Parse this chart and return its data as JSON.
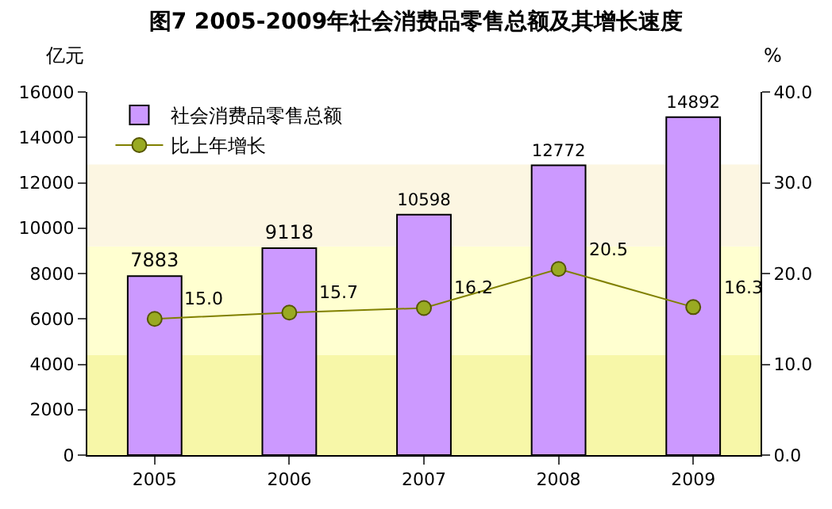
{
  "chart_data": {
    "type": "bar",
    "title": "图7 2005-2009年社会消费品零售总额及其增长速度",
    "ylabel": "亿元",
    "y2label": "%",
    "categories": [
      "2005",
      "2006",
      "2007",
      "2008",
      "2009"
    ],
    "series": [
      {
        "name": "社会消费品零售总额",
        "color": "#cc99ff",
        "values": [
          7883,
          9118,
          10598,
          12772,
          14892
        ]
      },
      {
        "name": "比上年增长",
        "type": "line",
        "axis": "y2",
        "color": "#808000",
        "values": [
          15.0,
          15.7,
          16.2,
          20.5,
          16.3
        ],
        "value_labels": [
          "15.0",
          "15.7",
          "16.2",
          "20.5",
          "16.3"
        ]
      }
    ],
    "ylim": [
      0,
      16000
    ],
    "yticks": [
      0,
      2000,
      4000,
      6000,
      8000,
      10000,
      12000,
      14000,
      16000
    ],
    "y2lim": [
      0,
      40
    ],
    "y2ticks": [
      {
        "value": 0,
        "label": "0.0"
      },
      {
        "value": 10,
        "label": "10.0"
      },
      {
        "value": 20,
        "label": "20.0"
      },
      {
        "value": 30,
        "label": "30.0"
      },
      {
        "value": 40,
        "label": "40.0"
      }
    ],
    "bands": [
      {
        "axis": "y",
        "from": 0,
        "to": 4400,
        "color": "#f7f7a8"
      },
      {
        "axis": "y",
        "from": 4400,
        "to": 9200,
        "color": "#ffffd0"
      },
      {
        "axis": "y",
        "from": 9200,
        "to": 12800,
        "color": "#fcf6e2"
      }
    ],
    "data_labels": true,
    "marker": "circle",
    "legend": "top left",
    "grid": false
  }
}
